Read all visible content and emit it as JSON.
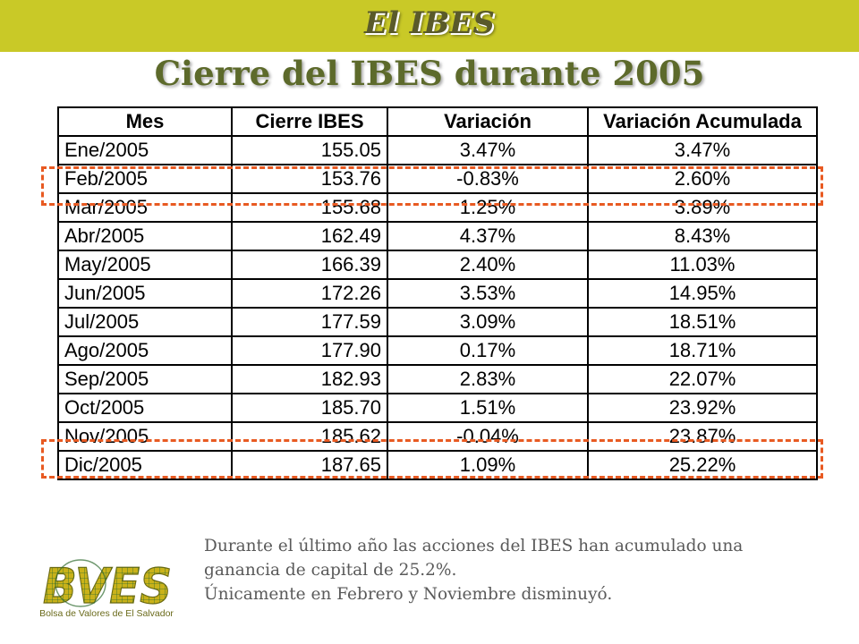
{
  "header": {
    "title": "El IBES"
  },
  "page_title": "Cierre del IBES durante 2005",
  "table": {
    "columns": [
      "Mes",
      "Cierre IBES",
      "Variación",
      "Variación Acumulada"
    ],
    "rows": [
      [
        "Ene/2005",
        "155.05",
        "3.47%",
        "3.47%"
      ],
      [
        "Feb/2005",
        "153.76",
        "-0.83%",
        "2.60%"
      ],
      [
        "Mar/2005",
        "155.68",
        "1.25%",
        "3.89%"
      ],
      [
        "Abr/2005",
        "162.49",
        "4.37%",
        "8.43%"
      ],
      [
        "May/2005",
        "166.39",
        "2.40%",
        "11.03%"
      ],
      [
        "Jun/2005",
        "172.26",
        "3.53%",
        "14.95%"
      ],
      [
        "Jul/2005",
        "177.59",
        "3.09%",
        "18.51%"
      ],
      [
        "Ago/2005",
        "177.90",
        "0.17%",
        "18.71%"
      ],
      [
        "Sep/2005",
        "182.93",
        "2.83%",
        "22.07%"
      ],
      [
        "Oct/2005",
        "185.70",
        "1.51%",
        "23.92%"
      ],
      [
        "Nov/2005",
        "185.62",
        "-0.04%",
        "23.87%"
      ],
      [
        "Dic/2005",
        "187.65",
        "1.09%",
        "25.22%"
      ]
    ],
    "highlighted_rows": [
      "Feb/2005",
      "Nov/2005"
    ]
  },
  "footnote": {
    "line1": "Durante el último año las acciones del IBES han acumulado una",
    "line2": "ganancia de capital de 25.2%.",
    "line3": "Únicamente en Febrero y Noviembre disminuyó."
  },
  "logo": {
    "text": "BVES",
    "caption": "Bolsa de Valores de El Salvador"
  },
  "colors": {
    "top_bar": "#c9c927",
    "title": "#5d6a2b",
    "highlight_border": "#e85a22",
    "footnote": "#5a5a5a"
  }
}
